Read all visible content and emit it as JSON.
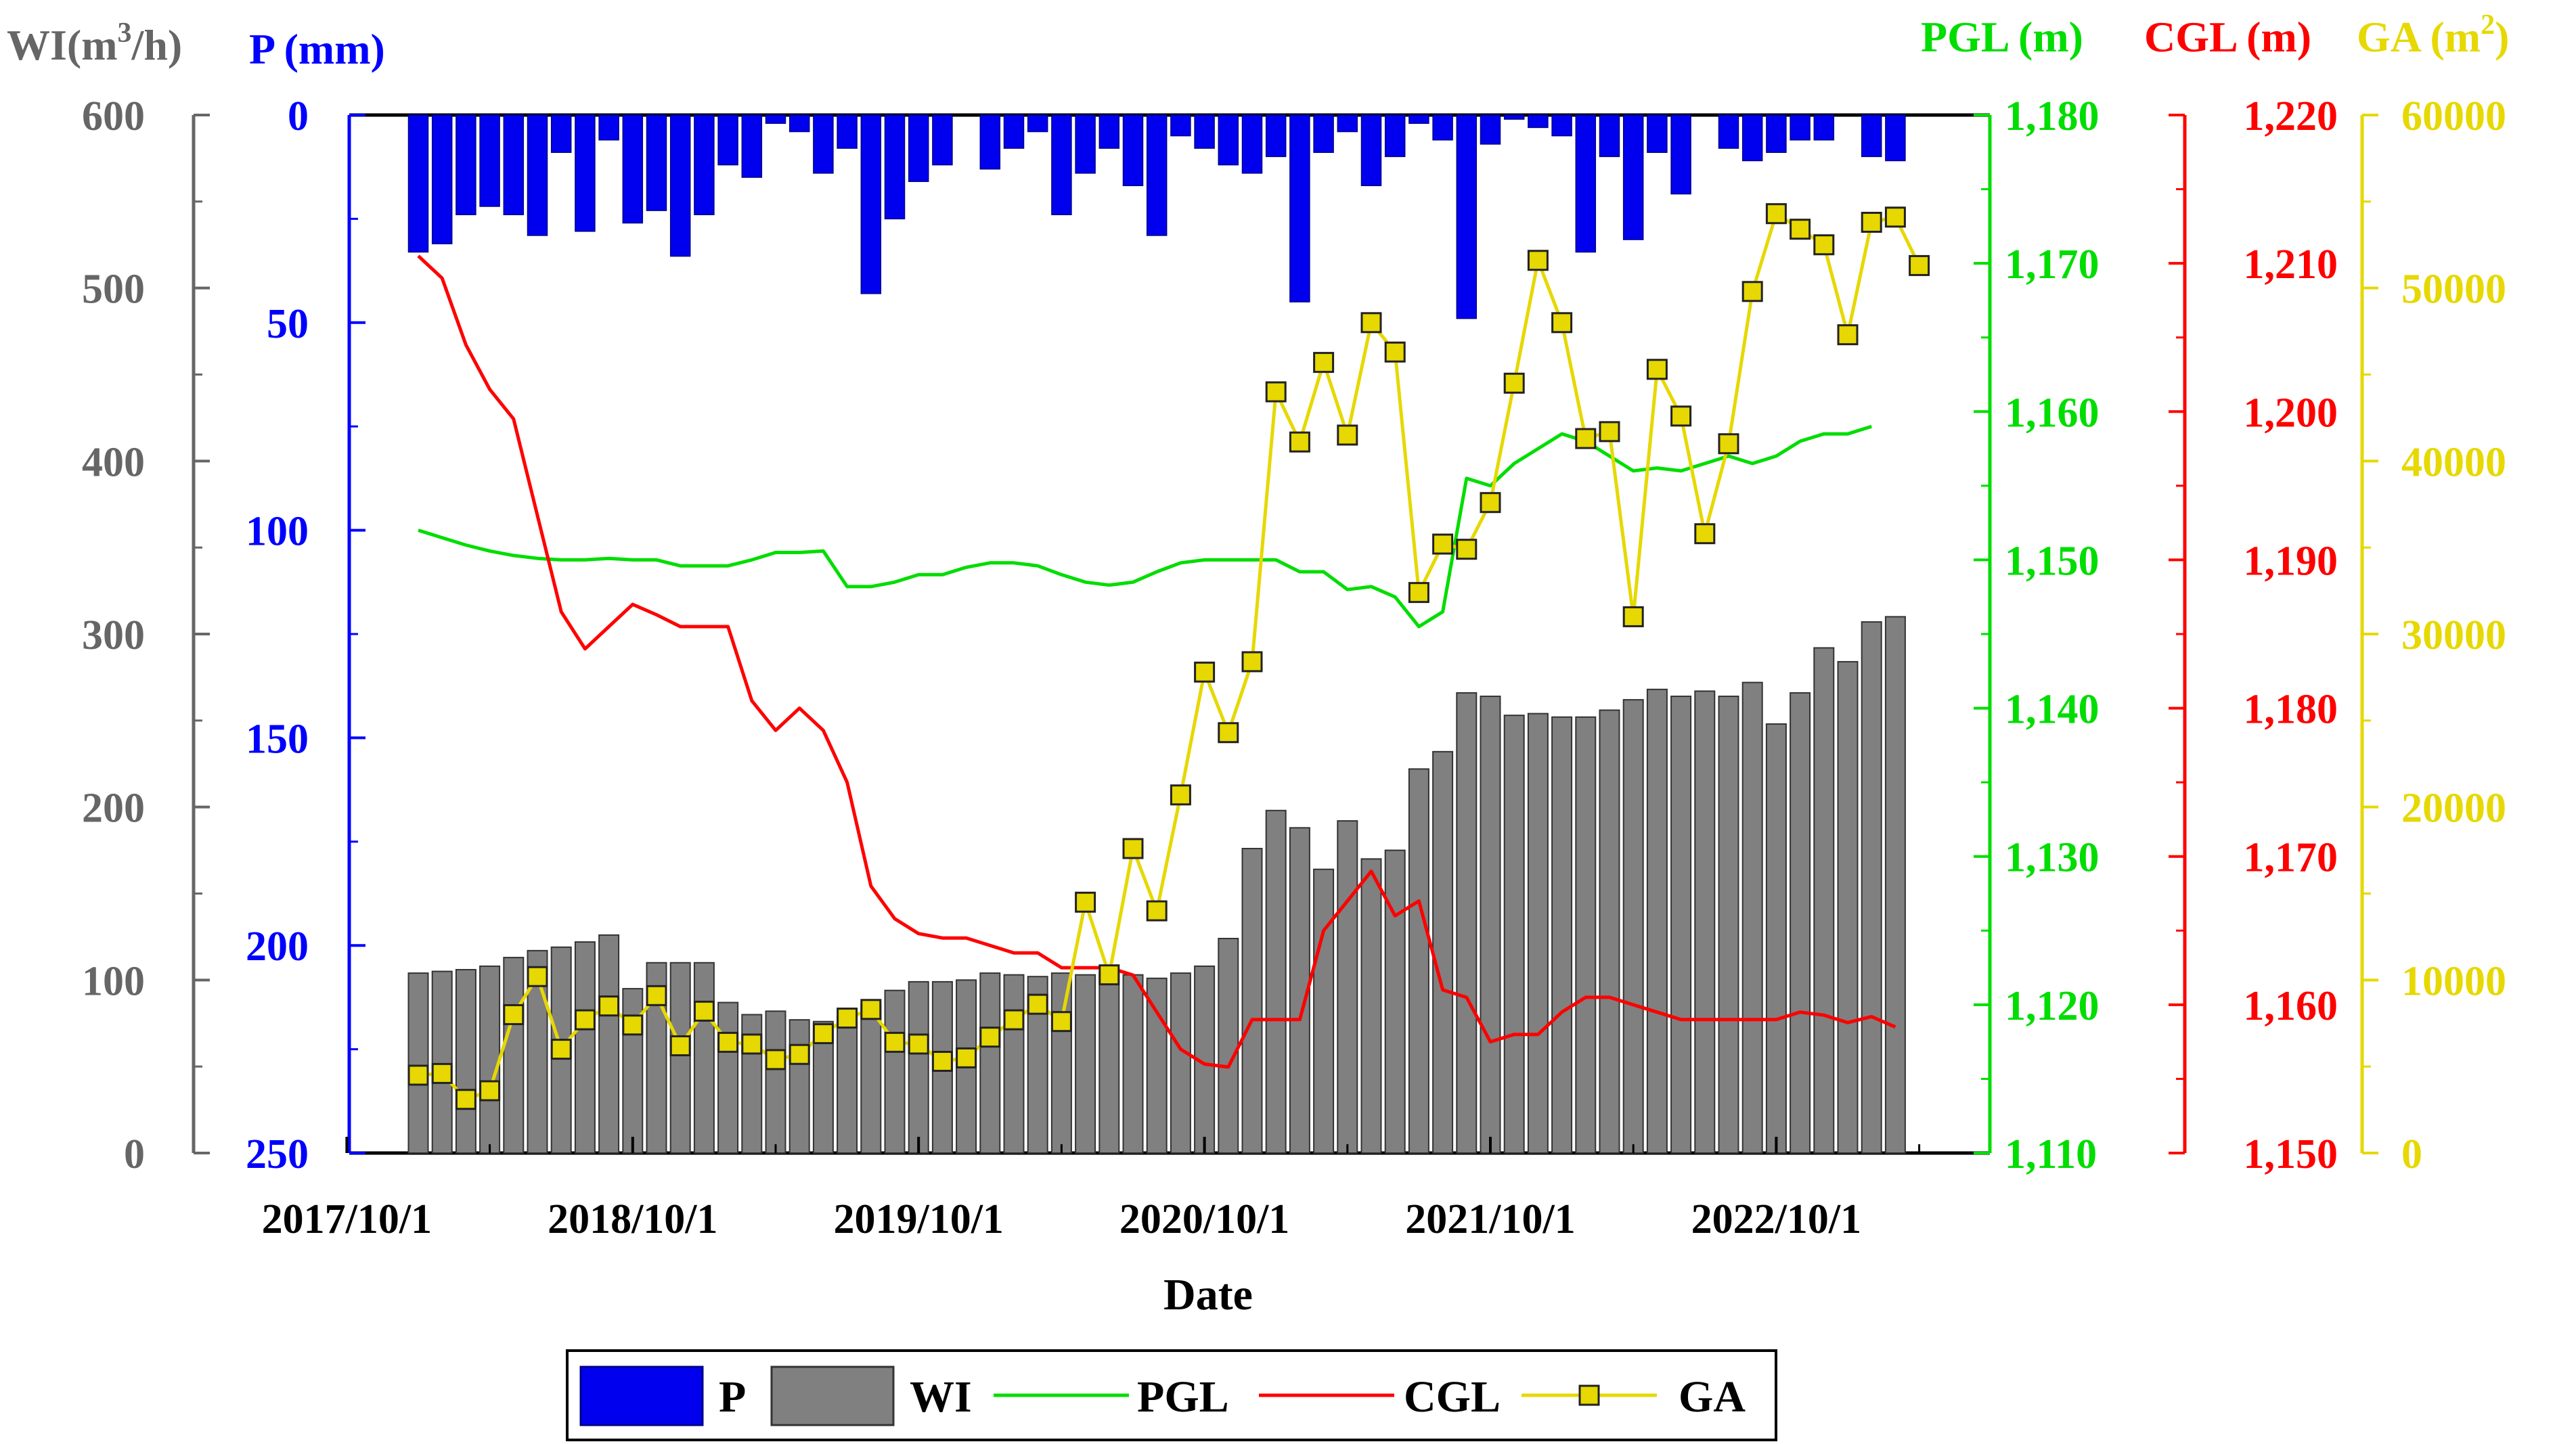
{
  "chart_data": {
    "type": "combo",
    "xlabel": "Date",
    "x_ticks": [
      "2017/10/1",
      "2018/10/1",
      "2019/10/1",
      "2020/10/1",
      "2021/10/1",
      "2022/10/1"
    ],
    "months": [
      "2018-01",
      "2018-02",
      "2018-03",
      "2018-04",
      "2018-05",
      "2018-06",
      "2018-07",
      "2018-08",
      "2018-09",
      "2018-10",
      "2018-11",
      "2018-12",
      "2019-01",
      "2019-02",
      "2019-03",
      "2019-04",
      "2019-05",
      "2019-06",
      "2019-07",
      "2019-08",
      "2019-09",
      "2019-10",
      "2019-11",
      "2019-12",
      "2020-01",
      "2020-02",
      "2020-03",
      "2020-04",
      "2020-05",
      "2020-06",
      "2020-07",
      "2020-08",
      "2020-09",
      "2020-10",
      "2020-11",
      "2020-12",
      "2021-01",
      "2021-02",
      "2021-03",
      "2021-04",
      "2021-05",
      "2021-06",
      "2021-07",
      "2021-08",
      "2021-09",
      "2021-10",
      "2021-11",
      "2021-12",
      "2022-01",
      "2022-02",
      "2022-03",
      "2022-04",
      "2022-05",
      "2022-06",
      "2022-07",
      "2022-08",
      "2022-09",
      "2022-10",
      "2022-11",
      "2022-12",
      "2023-01",
      "2023-02",
      "2023-03",
      "2023-04",
      "2023-05"
    ],
    "axes": {
      "WI": {
        "label_main": "WI(m",
        "label_sup": "3",
        "label_tail": "/h)",
        "range": [
          0,
          600
        ],
        "ticks": [
          0,
          100,
          200,
          300,
          400,
          500,
          600
        ],
        "color": "#666666"
      },
      "P": {
        "label": "P (mm)",
        "range": [
          250,
          0
        ],
        "ticks": [
          0,
          50,
          100,
          150,
          200,
          250
        ],
        "color": "#0000ff"
      },
      "PGL": {
        "label": "PGL (m)",
        "range": [
          1110,
          1180
        ],
        "ticks": [
          "1,110",
          "1,120",
          "1,130",
          "1,140",
          "1,150",
          "1,160",
          "1,170",
          "1,180"
        ],
        "color": "#00dd00"
      },
      "CGL": {
        "label": "CGL (m)",
        "range": [
          1150,
          1220
        ],
        "ticks": [
          "1,150",
          "1,160",
          "1,170",
          "1,180",
          "1,190",
          "1,200",
          "1,210",
          "1,220"
        ],
        "color": "#ff0000"
      },
      "GA": {
        "label_main": "GA (m",
        "label_sup": "2",
        "label_tail": ")",
        "range": [
          0,
          60000
        ],
        "ticks": [
          "0",
          "10000",
          "20000",
          "30000",
          "40000",
          "50000",
          "60000"
        ],
        "color": "#e6d800"
      }
    },
    "series": [
      {
        "name": "P",
        "type": "bar",
        "axis": "P",
        "color": "#0000ff",
        "values": [
          33,
          31,
          24,
          22,
          24,
          29,
          9,
          28,
          6,
          26,
          23,
          34,
          24,
          12,
          15,
          2,
          4,
          14,
          8,
          43,
          25,
          16,
          12,
          0,
          13,
          8,
          4,
          24,
          14,
          8,
          17,
          29,
          5,
          8,
          12,
          14,
          10,
          45,
          9,
          4,
          17,
          10,
          2,
          6,
          49,
          7,
          1,
          3,
          5,
          33,
          10,
          30,
          9,
          19,
          0,
          8,
          11,
          9,
          6,
          6,
          0,
          10,
          11
        ]
      },
      {
        "name": "WI",
        "type": "bar",
        "axis": "WI",
        "color": "#808080",
        "values": [
          104,
          105,
          106,
          108,
          113,
          117,
          119,
          122,
          126,
          95,
          110,
          110,
          110,
          87,
          80,
          82,
          77,
          76,
          79,
          86,
          94,
          99,
          99,
          100,
          104,
          103,
          102,
          104,
          103,
          104,
          103,
          101,
          104,
          108,
          124,
          176,
          198,
          188,
          164,
          192,
          170,
          175,
          222,
          232,
          266,
          264,
          253,
          254,
          252,
          252,
          256,
          262,
          268,
          264,
          267,
          264,
          272,
          248,
          266,
          292,
          284,
          307,
          310
        ]
      },
      {
        "name": "PGL",
        "type": "line",
        "axis": "PGL",
        "color": "#00dd00",
        "values": [
          1152.0,
          1151.5,
          1151.0,
          1150.6,
          1150.3,
          1150.1,
          1150.0,
          1150.0,
          1150.1,
          1150.0,
          1150.0,
          1149.6,
          1149.6,
          1149.6,
          1150.0,
          1150.5,
          1150.5,
          1150.6,
          1148.2,
          1148.2,
          1148.5,
          1149.0,
          1149.0,
          1149.5,
          1149.8,
          1149.8,
          1149.6,
          1149.0,
          1148.5,
          1148.3,
          1148.5,
          1149.2,
          1149.8,
          1150.0,
          1150.0,
          1150.0,
          1150.0,
          1149.2,
          1149.2,
          1148.0,
          1148.2,
          1147.5,
          1145.5,
          1146.5,
          1155.5,
          1155.0,
          1156.5,
          1157.5,
          1158.5,
          1158.0,
          1157.0,
          1156.0,
          1156.2,
          1156.0,
          1156.5,
          1157.0,
          1156.5,
          1157.0,
          1158.0,
          1158.5,
          1158.5,
          1159.0
        ]
      },
      {
        "name": "CGL",
        "type": "line",
        "axis": "CGL",
        "color": "#ff0000",
        "values": [
          1210.5,
          1209.0,
          1204.5,
          1201.5,
          1199.5,
          1193.0,
          1186.5,
          1184.0,
          1185.5,
          1187.0,
          1186.3,
          1185.5,
          1185.5,
          1185.5,
          1180.5,
          1178.5,
          1180.0,
          1178.5,
          1175.0,
          1168.0,
          1165.8,
          1164.8,
          1164.5,
          1164.5,
          1164.0,
          1163.5,
          1163.5,
          1162.5,
          1162.5,
          1162.5,
          1162.0,
          1159.5,
          1157.0,
          1156.0,
          1155.8,
          1159.0,
          1159.0,
          1159.0,
          1165.0,
          1167.0,
          1169.0,
          1166.0,
          1167.0,
          1161.0,
          1160.5,
          1157.5,
          1158.0,
          1158.0,
          1159.5,
          1160.5,
          1160.5,
          1160.0,
          1159.5,
          1159.0,
          1159.0,
          1159.0,
          1159.0,
          1159.0,
          1159.5,
          1159.3,
          1158.8,
          1159.2,
          1158.5
        ]
      },
      {
        "name": "GA",
        "type": "line",
        "axis": "GA",
        "color": "#e6d800",
        "marker": "square",
        "x_index": [
          0,
          1,
          2,
          3,
          4,
          5,
          6,
          7,
          8,
          9,
          10,
          11,
          12,
          13,
          14,
          15,
          16,
          17,
          18,
          19,
          20,
          21,
          22,
          23,
          24,
          25,
          26,
          27,
          28,
          29,
          30,
          31,
          32,
          33,
          34,
          35,
          36,
          37,
          38,
          39,
          40,
          41,
          42,
          43,
          44,
          45,
          46,
          47,
          48,
          49,
          50,
          51,
          52,
          53,
          54,
          55,
          56,
          57,
          58,
          59,
          60,
          61,
          62,
          63
        ],
        "values": [
          4500,
          4600,
          3100,
          3600,
          8000,
          10200,
          6000,
          7700,
          8500,
          7400,
          9100,
          6200,
          8200,
          6400,
          6300,
          5400,
          5700,
          6900,
          7800,
          8300,
          6400,
          6300,
          5300,
          5500,
          6700,
          7700,
          8600,
          7600,
          14500,
          10300,
          17600,
          14000,
          20700,
          27800,
          24300,
          28400,
          44000,
          41100,
          45700,
          41500,
          48000,
          46300,
          32400,
          35200,
          34900,
          37600,
          44500,
          51600,
          48000,
          41300,
          41700,
          31000,
          45300,
          42600,
          35800,
          41000,
          49800,
          54300,
          53400,
          52500,
          47300,
          53800,
          54100,
          51300
        ]
      }
    ],
    "legend": [
      "P",
      "WI",
      "PGL",
      "CGL",
      "GA"
    ],
    "legend_position": "bottom-center"
  }
}
